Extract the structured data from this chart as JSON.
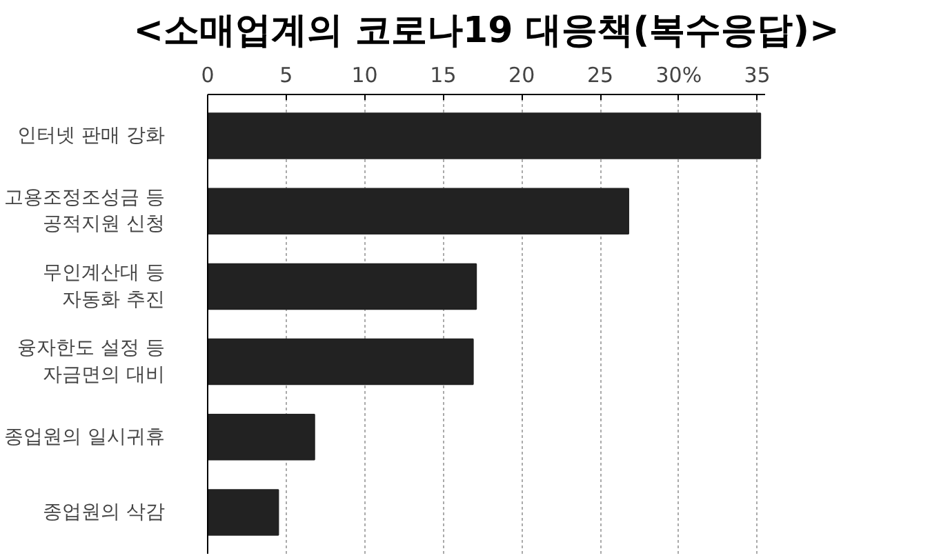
{
  "chart_data": {
    "type": "bar",
    "orientation": "horizontal",
    "title": "<소매업계의 코로나19 대응책(복수응답)>",
    "categories": [
      "인터넷 판매 강화",
      "고용조정조성금 등\n공적지원 신청",
      "무인계산대 등\n자동화 추진",
      "융자한도 설정 등\n자금면의 대비",
      "종업원의 일시귀휴",
      "종업원의 삭감"
    ],
    "values": [
      35.2,
      26.8,
      17.1,
      16.9,
      6.8,
      4.5
    ],
    "color": "#222222",
    "xlim": [
      0,
      35.5
    ],
    "xticks": [
      0,
      5,
      10,
      15,
      20,
      25,
      {
        "value": 30,
        "label": "30%"
      },
      35
    ],
    "grid": "x"
  }
}
